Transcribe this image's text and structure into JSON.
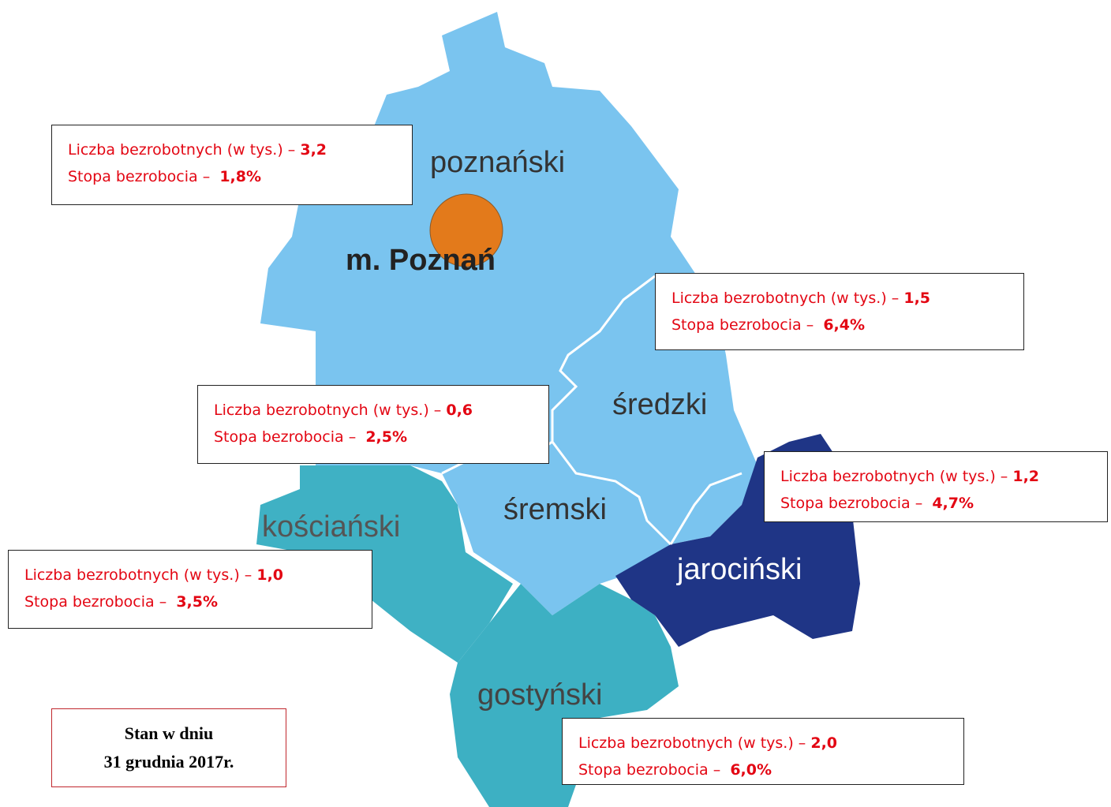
{
  "map_labels": [
    "poznański",
    "m. Poznań",
    "średzki",
    "śremski",
    "kościański",
    "jarociński",
    "gostyński"
  ],
  "info_boxes": [
    {
      "count_label": "Liczba bezrobotnych (w tys.) –",
      "count": "3,2",
      "rate_label": "Stopa bezrobocia –",
      "rate": "1,8%"
    },
    {
      "count_label": "Liczba bezrobotnych (w tys.) –",
      "count": "1,5",
      "rate_label": "Stopa bezrobocia –",
      "rate": "6,4%"
    },
    {
      "count_label": "Liczba bezrobotnych (w tys.) –",
      "count": "0,6",
      "rate_label": "Stopa bezrobocia –",
      "rate": "2,5%"
    },
    {
      "count_label": "Liczba bezrobotnych (w tys.) –",
      "count": "1,2",
      "rate_label": "Stopa bezrobocia –",
      "rate": "4,7%"
    },
    {
      "count_label": "Liczba bezrobotnych (w tys.) –",
      "count": "1,0",
      "rate_label": "Stopa bezrobocia –",
      "rate": "3,5%"
    },
    {
      "count_label": "Liczba bezrobotnych (w tys.) –",
      "count": "2,0",
      "rate_label": "Stopa bezrobocia –",
      "rate": "6,0%"
    }
  ],
  "date_note": {
    "line1": "Stan w dniu",
    "line2": "31 grudnia 2017r."
  }
}
